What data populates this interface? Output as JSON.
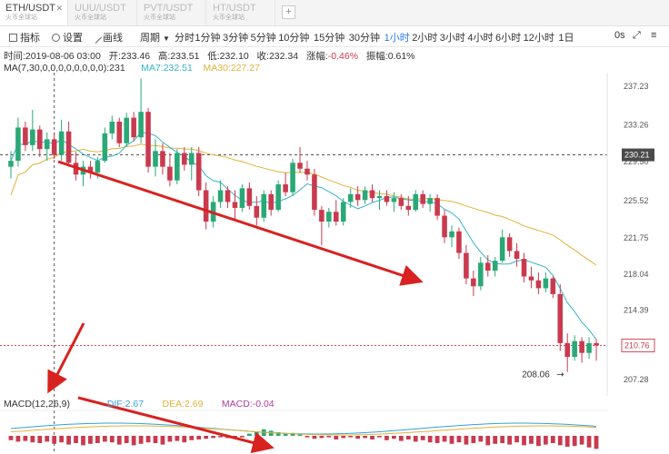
{
  "tabs": [
    {
      "label": "ETH/USDT",
      "sub": "火币全球站",
      "active": true
    },
    {
      "label": "UUU/USDT",
      "sub": "火币全球站",
      "active": false
    },
    {
      "label": "PVT/USDT",
      "sub": "火币全球站",
      "active": false
    },
    {
      "label": "HT/USDT",
      "sub": "火币全球站",
      "active": false
    }
  ],
  "toolbar": {
    "indicator": "指标",
    "settings": "设置",
    "draw": "画线",
    "period": "周期",
    "intervals": [
      "分时",
      "1分钟",
      "3分钟",
      "5分钟",
      "10分钟",
      "15分钟",
      "30分钟",
      "1小时",
      "2小时",
      "3小时",
      "4小时",
      "6小时",
      "12小时",
      "1日"
    ],
    "active_interval": "1小时",
    "zero_s": "0s"
  },
  "info": {
    "time_label": "时间:",
    "time": "2019-08-06 03:00",
    "open_label": "开:",
    "open": "233.46",
    "high_label": "高:",
    "high": "233.51",
    "low_label": "低:",
    "low": "232.10",
    "close_label": "收:",
    "close": "232.34",
    "change_label": "涨幅:",
    "change": "-0.46%",
    "amp_label": "振幅:",
    "amp": "0.61%"
  },
  "ma": {
    "label": "MA(7,30,0,0,0,0,0,0,0,0):",
    "val": "231",
    "ma7": "MA7:232.51",
    "ma30": "MA30:227.27"
  },
  "macd": {
    "label": "MACD(12,26,9)",
    "dif": "DIF:2.67",
    "dea": "DEA:2.69",
    "macd": "MACD:-0.04"
  },
  "colors": {
    "up": "#2aa876",
    "down": "#c93a4e",
    "ma7": "#35b3c9",
    "ma30": "#e0b23a",
    "arrow": "#d8221f",
    "dif": "#33a3d6"
  },
  "chart_data": {
    "type": "candlestick",
    "y_ticks": [
      "237.23",
      "233.26",
      "229.50",
      "225.52",
      "221.75",
      "218.04",
      "214.39",
      "210.76",
      "207.28"
    ],
    "crosshair_price": "230.21",
    "last_price": "210.76",
    "low_annotation": "208.06",
    "candles": [
      [
        229.0,
        230.6,
        227.8,
        229.6
      ],
      [
        229.6,
        234.0,
        229.0,
        233.0
      ],
      [
        233.0,
        233.6,
        230.6,
        231.2
      ],
      [
        231.2,
        234.8,
        230.6,
        232.8
      ],
      [
        232.8,
        233.2,
        230.0,
        230.8
      ],
      [
        230.8,
        232.5,
        229.6,
        231.8
      ],
      [
        231.8,
        232.5,
        229.8,
        230.2
      ],
      [
        230.2,
        233.8,
        229.6,
        232.6
      ],
      [
        232.6,
        233.6,
        229.0,
        229.4
      ],
      [
        229.4,
        230.5,
        227.6,
        228.2
      ],
      [
        228.2,
        229.6,
        227.0,
        229.0
      ],
      [
        229.0,
        229.6,
        227.8,
        228.4
      ],
      [
        228.4,
        230.0,
        227.8,
        229.6
      ],
      [
        229.6,
        233.0,
        229.4,
        232.4
      ],
      [
        232.4,
        234.2,
        231.8,
        233.6
      ],
      [
        233.6,
        234.0,
        231.0,
        231.4
      ],
      [
        231.4,
        234.5,
        231.0,
        234.0
      ],
      [
        234.0,
        234.6,
        231.6,
        232.0
      ],
      [
        232.0,
        238.0,
        231.4,
        234.6
      ],
      [
        234.6,
        235.0,
        228.4,
        229.0
      ],
      [
        229.0,
        231.8,
        228.0,
        230.6
      ],
      [
        230.6,
        231.4,
        228.2,
        229.0
      ],
      [
        229.0,
        230.4,
        227.0,
        227.6
      ],
      [
        227.6,
        230.8,
        227.2,
        230.4
      ],
      [
        230.4,
        231.0,
        228.6,
        229.2
      ],
      [
        229.2,
        231.0,
        227.6,
        230.4
      ],
      [
        230.4,
        231.0,
        226.0,
        226.6
      ],
      [
        226.6,
        227.4,
        222.6,
        223.4
      ],
      [
        223.4,
        226.0,
        222.8,
        225.4
      ],
      [
        225.4,
        227.6,
        224.8,
        226.6
      ],
      [
        226.6,
        227.0,
        224.8,
        225.4
      ],
      [
        225.4,
        226.6,
        223.6,
        224.8
      ],
      [
        224.8,
        227.2,
        224.4,
        226.8
      ],
      [
        226.8,
        227.4,
        224.6,
        225.0
      ],
      [
        225.0,
        226.0,
        223.0,
        223.8
      ],
      [
        223.8,
        226.6,
        223.4,
        226.2
      ],
      [
        226.2,
        226.6,
        224.0,
        224.6
      ],
      [
        224.6,
        227.6,
        224.4,
        227.2
      ],
      [
        227.2,
        228.4,
        226.0,
        226.4
      ],
      [
        226.4,
        229.8,
        226.0,
        229.4
      ],
      [
        229.4,
        231.0,
        228.4,
        228.8
      ],
      [
        228.8,
        229.6,
        227.6,
        228.2
      ],
      [
        228.2,
        228.8,
        224.0,
        224.6
      ],
      [
        224.6,
        225.0,
        221.0,
        223.4
      ],
      [
        223.4,
        224.8,
        222.8,
        224.4
      ],
      [
        224.4,
        225.6,
        223.0,
        223.4
      ],
      [
        223.4,
        225.8,
        223.0,
        225.4
      ],
      [
        225.4,
        226.8,
        224.8,
        226.2
      ],
      [
        226.2,
        227.0,
        225.0,
        225.6
      ],
      [
        225.6,
        227.0,
        225.2,
        226.6
      ],
      [
        226.6,
        227.2,
        225.4,
        225.8
      ],
      [
        225.8,
        226.6,
        224.6,
        226.0
      ],
      [
        226.0,
        226.6,
        225.0,
        225.4
      ],
      [
        225.4,
        226.4,
        224.4,
        225.8
      ],
      [
        225.8,
        226.2,
        224.6,
        225.0
      ],
      [
        225.0,
        226.0,
        224.0,
        224.6
      ],
      [
        224.6,
        226.6,
        224.4,
        226.2
      ],
      [
        226.2,
        226.6,
        224.8,
        225.2
      ],
      [
        225.2,
        226.2,
        224.4,
        225.8
      ],
      [
        225.8,
        226.2,
        223.6,
        224.0
      ],
      [
        224.0,
        224.6,
        221.2,
        221.8
      ],
      [
        221.8,
        223.0,
        220.8,
        222.4
      ],
      [
        222.4,
        222.8,
        219.6,
        220.2
      ],
      [
        220.2,
        221.0,
        217.0,
        217.6
      ],
      [
        217.6,
        218.4,
        215.8,
        216.8
      ],
      [
        216.8,
        219.8,
        216.4,
        219.2
      ],
      [
        219.2,
        220.0,
        217.8,
        218.4
      ],
      [
        218.4,
        219.8,
        217.8,
        219.4
      ],
      [
        219.4,
        222.6,
        219.2,
        221.8
      ],
      [
        221.8,
        222.2,
        219.8,
        220.4
      ],
      [
        220.4,
        221.2,
        218.8,
        219.6
      ],
      [
        219.6,
        220.2,
        217.2,
        217.8
      ],
      [
        217.8,
        218.8,
        216.6,
        217.4
      ],
      [
        217.4,
        218.2,
        216.0,
        216.6
      ],
      [
        216.6,
        218.2,
        216.2,
        217.6
      ],
      [
        217.6,
        217.8,
        215.6,
        216.0
      ],
      [
        216.0,
        217.0,
        210.2,
        211.0
      ],
      [
        211.0,
        212.0,
        208.06,
        209.6
      ],
      [
        209.6,
        211.8,
        209.2,
        211.2
      ],
      [
        211.2,
        211.6,
        209.0,
        210.0
      ],
      [
        210.0,
        211.6,
        209.4,
        211.0
      ],
      [
        211.0,
        211.4,
        209.2,
        210.76
      ]
    ],
    "macd_hist": [
      -0.6,
      -0.8,
      -0.7,
      -0.9,
      -1.0,
      -0.8,
      -1.1,
      -0.9,
      -1.2,
      -1.0,
      -1.3,
      -1.1,
      -1.0,
      -0.8,
      -0.9,
      -1.2,
      -1.0,
      -1.3,
      -1.1,
      -0.9,
      -1.0,
      -1.2,
      -0.8,
      -0.7,
      -0.9,
      -0.6,
      -0.5,
      -0.4,
      -0.3,
      -0.2,
      -0.3,
      -0.4,
      -0.2,
      0.3,
      0.6,
      0.9,
      0.7,
      0.5,
      0.3,
      0.4,
      0.2,
      -0.2,
      -0.4,
      -0.3,
      -0.2,
      -0.5,
      -0.3,
      -0.2,
      -0.4,
      -0.3,
      -0.5,
      -0.2,
      -0.6,
      -0.4,
      -0.7,
      -0.5,
      -0.8,
      -0.6,
      -0.9,
      -1.0,
      -0.8,
      -1.1,
      -0.9,
      -1.2,
      -1.0,
      -0.8,
      -1.3,
      -1.1,
      -1.0,
      -1.2,
      -0.9,
      -1.3,
      -1.1,
      -1.4,
      -1.2,
      -1.0,
      -1.3,
      -1.5,
      -1.4,
      -1.2,
      -1.6,
      -1.8
    ]
  }
}
